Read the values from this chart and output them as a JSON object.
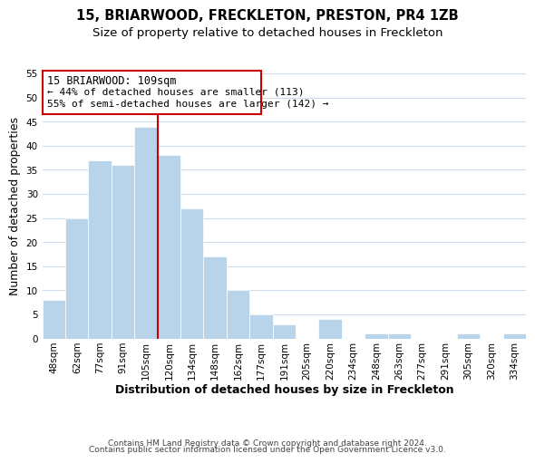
{
  "title": "15, BRIARWOOD, FRECKLETON, PRESTON, PR4 1ZB",
  "subtitle": "Size of property relative to detached houses in Freckleton",
  "xlabel": "Distribution of detached houses by size in Freckleton",
  "ylabel": "Number of detached properties",
  "categories": [
    "48sqm",
    "62sqm",
    "77sqm",
    "91sqm",
    "105sqm",
    "120sqm",
    "134sqm",
    "148sqm",
    "162sqm",
    "177sqm",
    "191sqm",
    "205sqm",
    "220sqm",
    "234sqm",
    "248sqm",
    "263sqm",
    "277sqm",
    "291sqm",
    "305sqm",
    "320sqm",
    "334sqm"
  ],
  "values": [
    8,
    25,
    37,
    36,
    44,
    38,
    27,
    17,
    10,
    5,
    3,
    0,
    4,
    0,
    1,
    1,
    0,
    0,
    1,
    0,
    1
  ],
  "bar_color": "#b8d4ea",
  "bar_edge_color": "#ffffff",
  "ylim": [
    0,
    55
  ],
  "yticks": [
    0,
    5,
    10,
    15,
    20,
    25,
    30,
    35,
    40,
    45,
    50,
    55
  ],
  "marker_bin_index": 4,
  "vline_color": "#cc0000",
  "annotation_text_line1": "15 BRIARWOOD: 109sqm",
  "annotation_text_line2": "← 44% of detached houses are smaller (113)",
  "annotation_text_line3": "55% of semi-detached houses are larger (142) →",
  "annotation_box_color": "#ffffff",
  "annotation_box_edge_color": "#cc0000",
  "footer_line1": "Contains HM Land Registry data © Crown copyright and database right 2024.",
  "footer_line2": "Contains public sector information licensed under the Open Government Licence v3.0.",
  "background_color": "#ffffff",
  "grid_color": "#d0dcea",
  "title_fontsize": 10.5,
  "subtitle_fontsize": 9.5,
  "tick_fontsize": 7.5,
  "ylabel_fontsize": 9,
  "xlabel_fontsize": 9
}
